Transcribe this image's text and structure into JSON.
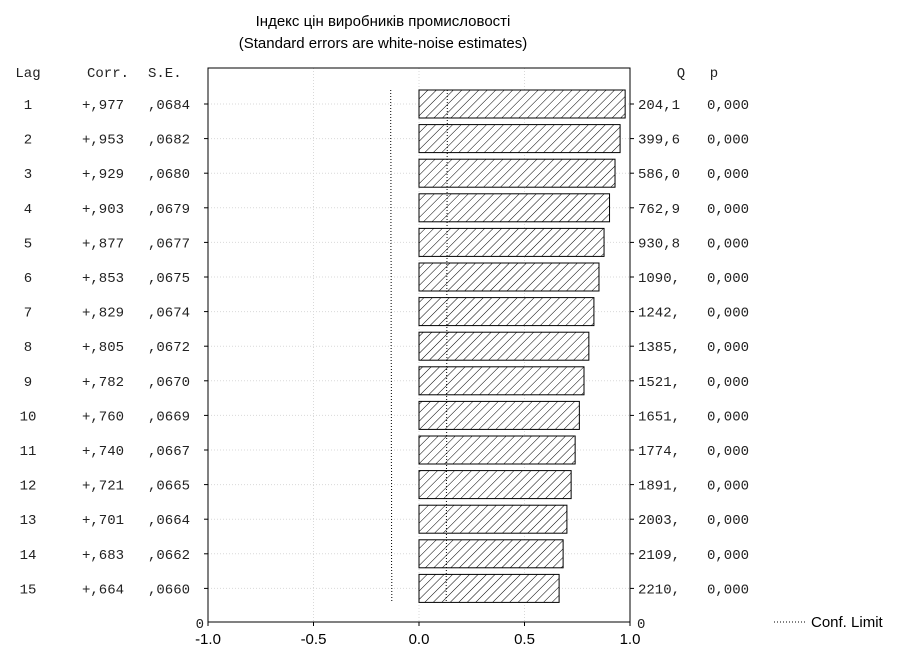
{
  "chart_data": {
    "type": "bar",
    "orientation": "horizontal",
    "title": "Індекс цін виробників промисловості",
    "subtitle": "(Standard errors are white-noise estimates)",
    "table_headers": {
      "lag": "Lag",
      "corr": "Corr.",
      "se": "S.E.",
      "q": "Q",
      "p": "p"
    },
    "rows": [
      {
        "lag": "1",
        "corr_label": "+,977",
        "se_label": ",0684",
        "q_label": "204,1",
        "p_label": "0,000",
        "value": 0.977,
        "conf_limit": 0.134
      },
      {
        "lag": "2",
        "corr_label": "+,953",
        "se_label": ",0682",
        "q_label": "399,6",
        "p_label": "0,000",
        "value": 0.953,
        "conf_limit": 0.134
      },
      {
        "lag": "3",
        "corr_label": "+,929",
        "se_label": ",0680",
        "q_label": "586,0",
        "p_label": "0,000",
        "value": 0.929,
        "conf_limit": 0.133
      },
      {
        "lag": "4",
        "corr_label": "+,903",
        "se_label": ",0679",
        "q_label": "762,9",
        "p_label": "0,000",
        "value": 0.903,
        "conf_limit": 0.133
      },
      {
        "lag": "5",
        "corr_label": "+,877",
        "se_label": ",0677",
        "q_label": "930,8",
        "p_label": "0,000",
        "value": 0.877,
        "conf_limit": 0.133
      },
      {
        "lag": "6",
        "corr_label": "+,853",
        "se_label": ",0675",
        "q_label": "1090,",
        "p_label": "0,000",
        "value": 0.853,
        "conf_limit": 0.132
      },
      {
        "lag": "7",
        "corr_label": "+,829",
        "se_label": ",0674",
        "q_label": "1242,",
        "p_label": "0,000",
        "value": 0.829,
        "conf_limit": 0.132
      },
      {
        "lag": "8",
        "corr_label": "+,805",
        "se_label": ",0672",
        "q_label": "1385,",
        "p_label": "0,000",
        "value": 0.805,
        "conf_limit": 0.132
      },
      {
        "lag": "9",
        "corr_label": "+,782",
        "se_label": ",0670",
        "q_label": "1521,",
        "p_label": "0,000",
        "value": 0.782,
        "conf_limit": 0.131
      },
      {
        "lag": "10",
        "corr_label": "+,760",
        "se_label": ",0669",
        "q_label": "1651,",
        "p_label": "0,000",
        "value": 0.76,
        "conf_limit": 0.131
      },
      {
        "lag": "11",
        "corr_label": "+,740",
        "se_label": ",0667",
        "q_label": "1774,",
        "p_label": "0,000",
        "value": 0.74,
        "conf_limit": 0.131
      },
      {
        "lag": "12",
        "corr_label": "+,721",
        "se_label": ",0665",
        "q_label": "1891,",
        "p_label": "0,000",
        "value": 0.721,
        "conf_limit": 0.13
      },
      {
        "lag": "13",
        "corr_label": "+,701",
        "se_label": ",0664",
        "q_label": "2003,",
        "p_label": "0,000",
        "value": 0.701,
        "conf_limit": 0.13
      },
      {
        "lag": "14",
        "corr_label": "+,683",
        "se_label": ",0662",
        "q_label": "2109,",
        "p_label": "0,000",
        "value": 0.683,
        "conf_limit": 0.13
      },
      {
        "lag": "15",
        "corr_label": "+,664",
        "se_label": ",0660",
        "q_label": "2210,",
        "p_label": "0,000",
        "value": 0.664,
        "conf_limit": 0.129
      }
    ],
    "xlim": [
      -1.0,
      1.0
    ],
    "x_ticks": [
      "-1.0",
      "-0.5",
      "0.0",
      "0.5",
      "1.0"
    ],
    "x_tick_values": [
      -1.0,
      -0.5,
      0.0,
      0.5,
      1.0
    ],
    "left_axis_zero_label": "0",
    "right_axis_zero_label": "0",
    "legend": {
      "label": "Conf. Limit",
      "position": "bottom-right"
    },
    "colors": {
      "bar_fill": "#ffffff",
      "bar_stroke": "#000000",
      "hatch": "#000000",
      "grid": "#d9d9d9"
    }
  }
}
